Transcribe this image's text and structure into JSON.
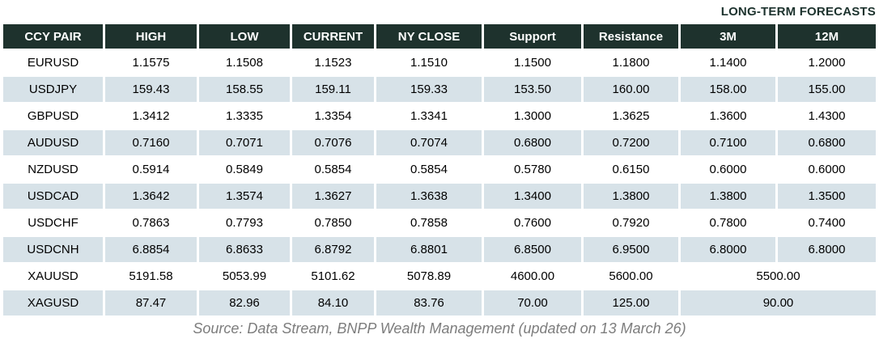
{
  "title": "LONG-TERM FORECASTS",
  "chart_data": {
    "type": "table",
    "title": "LONG-TERM FORECASTS",
    "columns": [
      "CCY PAIR",
      "HIGH",
      "LOW",
      "CURRENT",
      "NY CLOSE",
      "Support",
      "Resistance",
      "3M",
      "12M"
    ],
    "rows": [
      {
        "cells": [
          "EURUSD",
          "1.1575",
          "1.1508",
          "1.1523",
          "1.1510",
          "1.1500",
          "1.1800",
          "1.1400",
          "1.2000"
        ]
      },
      {
        "cells": [
          "USDJPY",
          "159.43",
          "158.55",
          "159.11",
          "159.33",
          "153.50",
          "160.00",
          "158.00",
          "155.00"
        ]
      },
      {
        "cells": [
          "GBPUSD",
          "1.3412",
          "1.3335",
          "1.3354",
          "1.3341",
          "1.3000",
          "1.3625",
          "1.3600",
          "1.4300"
        ]
      },
      {
        "cells": [
          "AUDUSD",
          "0.7160",
          "0.7071",
          "0.7076",
          "0.7074",
          "0.6800",
          "0.7200",
          "0.7100",
          "0.6800"
        ]
      },
      {
        "cells": [
          "NZDUSD",
          "0.5914",
          "0.5849",
          "0.5854",
          "0.5854",
          "0.5780",
          "0.6150",
          "0.6000",
          "0.6000"
        ]
      },
      {
        "cells": [
          "USDCAD",
          "1.3642",
          "1.3574",
          "1.3627",
          "1.3638",
          "1.3400",
          "1.3800",
          "1.3800",
          "1.3500"
        ]
      },
      {
        "cells": [
          "USDCHF",
          "0.7863",
          "0.7793",
          "0.7850",
          "0.7858",
          "0.7600",
          "0.7920",
          "0.7800",
          "0.7400"
        ]
      },
      {
        "cells": [
          "USDCNH",
          "6.8854",
          "6.8633",
          "6.8792",
          "6.8801",
          "6.8500",
          "6.9500",
          "6.8000",
          "6.8000"
        ]
      },
      {
        "cells": [
          "XAUUSD",
          "5191.58",
          "5053.99",
          "5101.62",
          "5078.89",
          "4600.00",
          "5600.00",
          "5500.00"
        ],
        "merge_last": true
      },
      {
        "cells": [
          "XAGUSD",
          "87.47",
          "82.96",
          "84.10",
          "83.76",
          "70.00",
          "125.00",
          "90.00"
        ],
        "merge_last": true
      }
    ]
  },
  "footer": "Source: Data Stream, BNPP Wealth Management (updated on 13 March 26)",
  "colors": {
    "header_bg": "#1e322d",
    "header_text": "#ffffff",
    "stripe_bg": "#d7e2e8",
    "title_text": "#1c322d",
    "footer_text": "#7d7d7d"
  }
}
